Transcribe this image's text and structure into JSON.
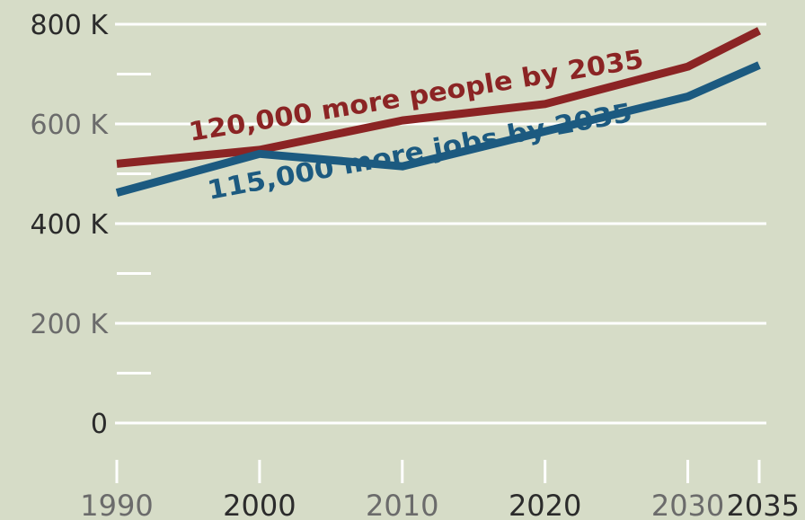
{
  "chart_data": {
    "type": "line",
    "x": [
      1990,
      2000,
      2010,
      2020,
      2030,
      2035
    ],
    "ylim": [
      0,
      800000
    ],
    "grid": true,
    "yticks": [
      {
        "value": 0,
        "label": "0",
        "color": "#2b2b2b"
      },
      {
        "value": 200000,
        "label": "200 K",
        "color": "#6b6b6b"
      },
      {
        "value": 400000,
        "label": "400 K",
        "color": "#2b2b2b"
      },
      {
        "value": 600000,
        "label": "600 K",
        "color": "#6b6b6b"
      },
      {
        "value": 800000,
        "label": "800 K",
        "color": "#2b2b2b"
      }
    ],
    "minor_yticks": [
      100000,
      300000,
      500000,
      700000
    ],
    "xticks": [
      {
        "value": 1990,
        "label": "1990",
        "color": "#6b6b6b"
      },
      {
        "value": 2000,
        "label": "2000",
        "color": "#2b2b2b"
      },
      {
        "value": 2010,
        "label": "2010",
        "color": "#6b6b6b"
      },
      {
        "value": 2020,
        "label": "2020",
        "color": "#2b2b2b"
      },
      {
        "value": 2030,
        "label": "2030",
        "color": "#6b6b6b"
      },
      {
        "value": 2035,
        "label": "2035",
        "color": "#2b2b2b"
      }
    ],
    "series": [
      {
        "key": "people",
        "color": "#8b2424",
        "values": [
          520000,
          548000,
          607000,
          640000,
          715000,
          787000
        ]
      },
      {
        "key": "jobs",
        "color": "#1c5a80",
        "values": [
          462000,
          540000,
          515000,
          585000,
          655000,
          718000
        ]
      }
    ],
    "annotations": [
      {
        "series": "people",
        "text": "120,000 more people by 2035",
        "color": "#8b2424"
      },
      {
        "series": "jobs",
        "text": "115,000 more jobs by  2035",
        "color": "#1c5a80"
      }
    ]
  }
}
